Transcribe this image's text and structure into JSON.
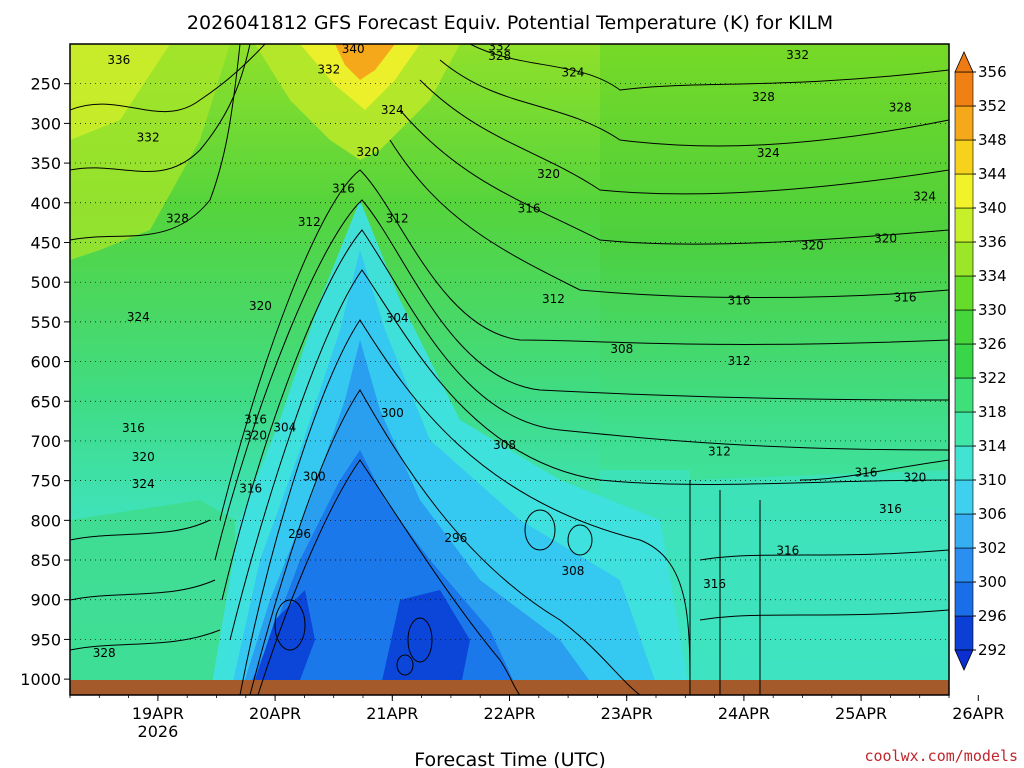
{
  "chart_data": {
    "type": "heatmap",
    "title": "2026041812 GFS Forecast Equiv. Potential Temperature (K) for KILM",
    "xlabel": "Forecast Time (UTC)",
    "ylabel": "",
    "credit": "coolwx.com/models",
    "x_ticks": [
      {
        "label": "19APR",
        "sublabel": "2026",
        "hour": 12
      },
      {
        "label": "20APR",
        "sublabel": "",
        "hour": 36
      },
      {
        "label": "21APR",
        "sublabel": "",
        "hour": 60
      },
      {
        "label": "22APR",
        "sublabel": "",
        "hour": 84
      },
      {
        "label": "23APR",
        "sublabel": "",
        "hour": 108
      },
      {
        "label": "24APR",
        "sublabel": "",
        "hour": 132
      },
      {
        "label": "25APR",
        "sublabel": "",
        "hour": 156
      },
      {
        "label": "26APR",
        "sublabel": "",
        "hour": 180
      }
    ],
    "xlim_hours": [
      -6,
      174
    ],
    "y_ticks": [
      250,
      300,
      350,
      400,
      450,
      500,
      550,
      600,
      650,
      700,
      750,
      800,
      850,
      900,
      950,
      1000
    ],
    "ylim_hpa": [
      200,
      1020
    ],
    "colorbar": {
      "levels": [
        292,
        296,
        300,
        302,
        306,
        310,
        314,
        318,
        322,
        326,
        330,
        334,
        336,
        340,
        344,
        348,
        352,
        356
      ],
      "labels": [
        "356",
        "352",
        "348",
        "344",
        "340",
        "336",
        "334",
        "330",
        "326",
        "322",
        "318",
        "314",
        "310",
        "306",
        "302",
        "300",
        "296",
        "292"
      ],
      "colors": [
        "#0b3fd6",
        "#1a6fe8",
        "#2a8ff0",
        "#35aef2",
        "#3fd0f0",
        "#43e3d4",
        "#3fe6a8",
        "#3fe07a",
        "#39d64a",
        "#44d63a",
        "#66dc2a",
        "#9be628",
        "#c8f02a",
        "#f2f22a",
        "#f7d21c",
        "#f5a81a",
        "#f08014"
      ]
    },
    "contour_labels": [
      {
        "value": "336",
        "hour": 4,
        "p": 220
      },
      {
        "value": "340",
        "hour": 52,
        "p": 206
      },
      {
        "value": "332",
        "hour": 82,
        "p": 203
      },
      {
        "value": "328",
        "hour": 82,
        "p": 215
      },
      {
        "value": "332",
        "hour": 143,
        "p": 214
      },
      {
        "value": "332",
        "hour": 47,
        "p": 232
      },
      {
        "value": "324",
        "hour": 97,
        "p": 236
      },
      {
        "value": "328",
        "hour": 136,
        "p": 267
      },
      {
        "value": "328",
        "hour": 164,
        "p": 280
      },
      {
        "value": "324",
        "hour": 60,
        "p": 283
      },
      {
        "value": "332",
        "hour": 10,
        "p": 318
      },
      {
        "value": "320",
        "hour": 55,
        "p": 336
      },
      {
        "value": "324",
        "hour": 137,
        "p": 337
      },
      {
        "value": "320",
        "hour": 92,
        "p": 364
      },
      {
        "value": "316",
        "hour": 50,
        "p": 382
      },
      {
        "value": "316",
        "hour": 88,
        "p": 407
      },
      {
        "value": "324",
        "hour": 169,
        "p": 392
      },
      {
        "value": "328",
        "hour": 16,
        "p": 420
      },
      {
        "value": "312",
        "hour": 43,
        "p": 424
      },
      {
        "value": "312",
        "hour": 61,
        "p": 420
      },
      {
        "value": "320",
        "hour": 161,
        "p": 445
      },
      {
        "value": "320",
        "hour": 146,
        "p": 454
      },
      {
        "value": "312",
        "hour": 93,
        "p": 521
      },
      {
        "value": "316",
        "hour": 131,
        "p": 523
      },
      {
        "value": "316",
        "hour": 165,
        "p": 519
      },
      {
        "value": "320",
        "hour": 33,
        "p": 530
      },
      {
        "value": "324",
        "hour": 8,
        "p": 544
      },
      {
        "value": "304",
        "hour": 61,
        "p": 545
      },
      {
        "value": "308",
        "hour": 107,
        "p": 584
      },
      {
        "value": "312",
        "hour": 131,
        "p": 599
      },
      {
        "value": "300",
        "hour": 60,
        "p": 665
      },
      {
        "value": "316",
        "hour": 7,
        "p": 684
      },
      {
        "value": "316",
        "hour": 32,
        "p": 673
      },
      {
        "value": "304",
        "hour": 38,
        "p": 683
      },
      {
        "value": "320",
        "hour": 32,
        "p": 693
      },
      {
        "value": "308",
        "hour": 83,
        "p": 705
      },
      {
        "value": "312",
        "hour": 127,
        "p": 713
      },
      {
        "value": "320",
        "hour": 9,
        "p": 720
      },
      {
        "value": "300",
        "hour": 44,
        "p": 745
      },
      {
        "value": "316",
        "hour": 157,
        "p": 740
      },
      {
        "value": "320",
        "hour": 167,
        "p": 746
      },
      {
        "value": "324",
        "hour": 9,
        "p": 754
      },
      {
        "value": "316",
        "hour": 31,
        "p": 760
      },
      {
        "value": "316",
        "hour": 162,
        "p": 786
      },
      {
        "value": "296",
        "hour": 41,
        "p": 817
      },
      {
        "value": "296",
        "hour": 73,
        "p": 822
      },
      {
        "value": "316",
        "hour": 141,
        "p": 838
      },
      {
        "value": "308",
        "hour": 97,
        "p": 864
      },
      {
        "value": "316",
        "hour": 126,
        "p": 880
      },
      {
        "value": "328",
        "hour": 1,
        "p": 967
      }
    ]
  }
}
